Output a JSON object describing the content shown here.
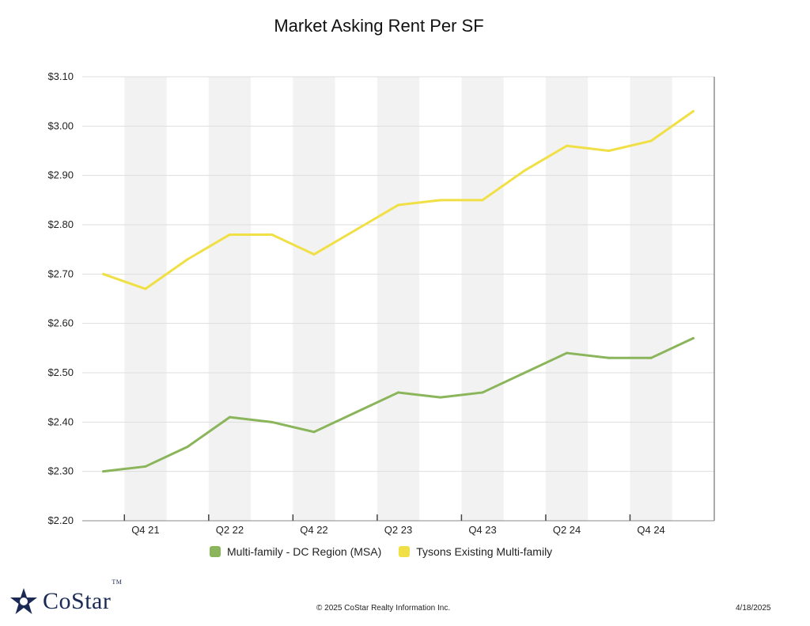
{
  "chart_data": {
    "type": "line",
    "title": "Market Asking Rent Per SF",
    "y_ticks": [
      "$3.10",
      "$3.00",
      "$2.90",
      "$2.80",
      "$2.70",
      "$2.60",
      "$2.50",
      "$2.40",
      "$2.30",
      "$2.20"
    ],
    "ylim": [
      2.2,
      3.1
    ],
    "x_tick_labels": [
      "Q4 21",
      "Q2 22",
      "Q4 22",
      "Q2 23",
      "Q4 23",
      "Q2 24",
      "Q4 24"
    ],
    "categories": [
      "Q3 21",
      "Q4 21",
      "Q1 22",
      "Q2 22",
      "Q3 22",
      "Q4 22",
      "Q1 23",
      "Q2 23",
      "Q3 23",
      "Q4 23",
      "Q1 24",
      "Q2 24",
      "Q3 24",
      "Q4 24",
      "Q1 25"
    ],
    "grid": true,
    "legend_position": "bottom",
    "series": [
      {
        "name": "Multi-family - DC Region (MSA)",
        "color": "#8ab55a",
        "values": [
          2.3,
          2.31,
          2.35,
          2.41,
          2.4,
          2.38,
          2.42,
          2.46,
          2.45,
          2.46,
          2.5,
          2.54,
          2.53,
          2.53,
          2.57
        ]
      },
      {
        "name": "Tysons Existing Multi-family",
        "color": "#f0df45",
        "values": [
          2.7,
          2.67,
          2.73,
          2.78,
          2.78,
          2.74,
          2.79,
          2.84,
          2.85,
          2.85,
          2.91,
          2.96,
          2.95,
          2.97,
          3.03
        ]
      }
    ]
  },
  "footer": {
    "logo": "CoStar",
    "logo_tm": "TM",
    "copyright": "© 2025 CoStar Realty Information Inc.",
    "date": "4/18/2025"
  }
}
